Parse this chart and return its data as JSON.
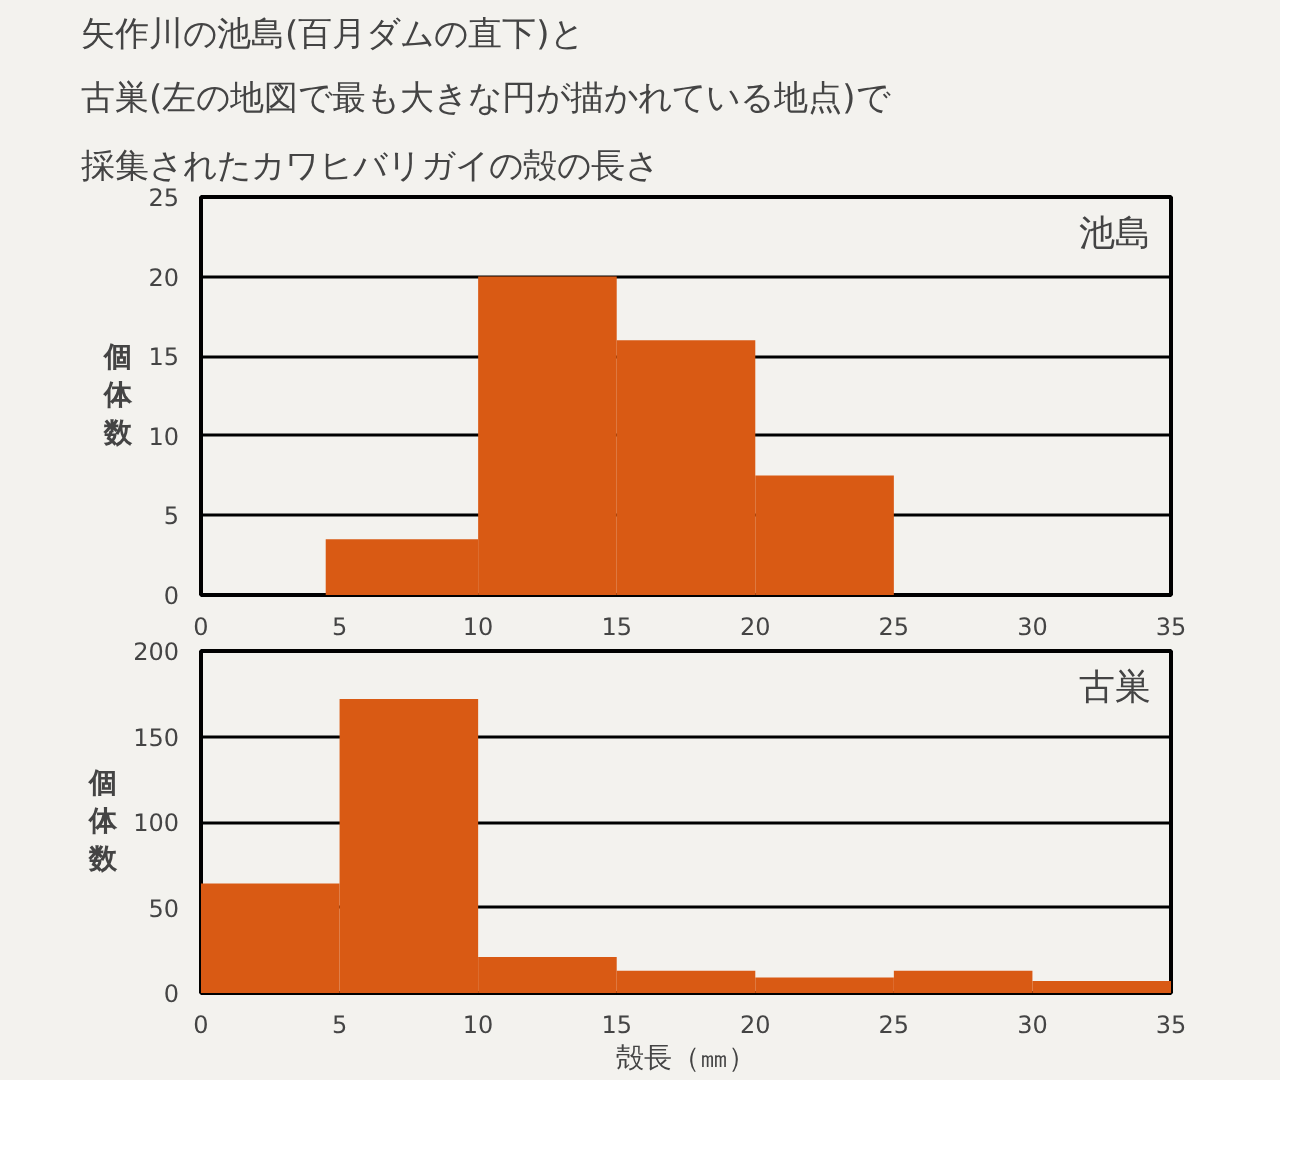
{
  "chart_data": [
    {
      "type": "histogram",
      "title": "矢作川の池島(百月ダムの直下)と",
      "subtitle": "古巣(左の地図で最も大きな円が描かれている地点)で採集されたカワヒバリガイの殻の長さ",
      "ylabel": "個体数",
      "annotations": [
        "池島"
      ],
      "bins": [
        4.5,
        10,
        15,
        20,
        25
      ],
      "values": [
        3.5,
        20,
        16,
        7.5
      ],
      "color": "#d95a14",
      "xlim": [
        0,
        35
      ],
      "xticks": [
        0,
        5,
        10,
        15,
        20,
        25,
        30,
        35
      ],
      "ylim": [
        0,
        25
      ],
      "yticks": [
        0,
        5,
        10,
        15,
        20,
        25
      ],
      "grid": "y"
    },
    {
      "type": "histogram",
      "ylabel": "個体数",
      "xlabel": "殻長（㎜）",
      "annotations": [
        "古巣"
      ],
      "bins": [
        0,
        5,
        10,
        15,
        20,
        25,
        30,
        35
      ],
      "values": [
        64,
        172,
        21,
        13,
        9,
        13,
        7
      ],
      "color": "#d95a14",
      "xlim": [
        0,
        35
      ],
      "xticks": [
        0,
        5,
        10,
        15,
        20,
        25,
        30,
        35
      ],
      "ylim": [
        0,
        200
      ],
      "yticks": [
        0,
        50,
        100,
        150,
        200
      ],
      "grid": "y"
    }
  ]
}
